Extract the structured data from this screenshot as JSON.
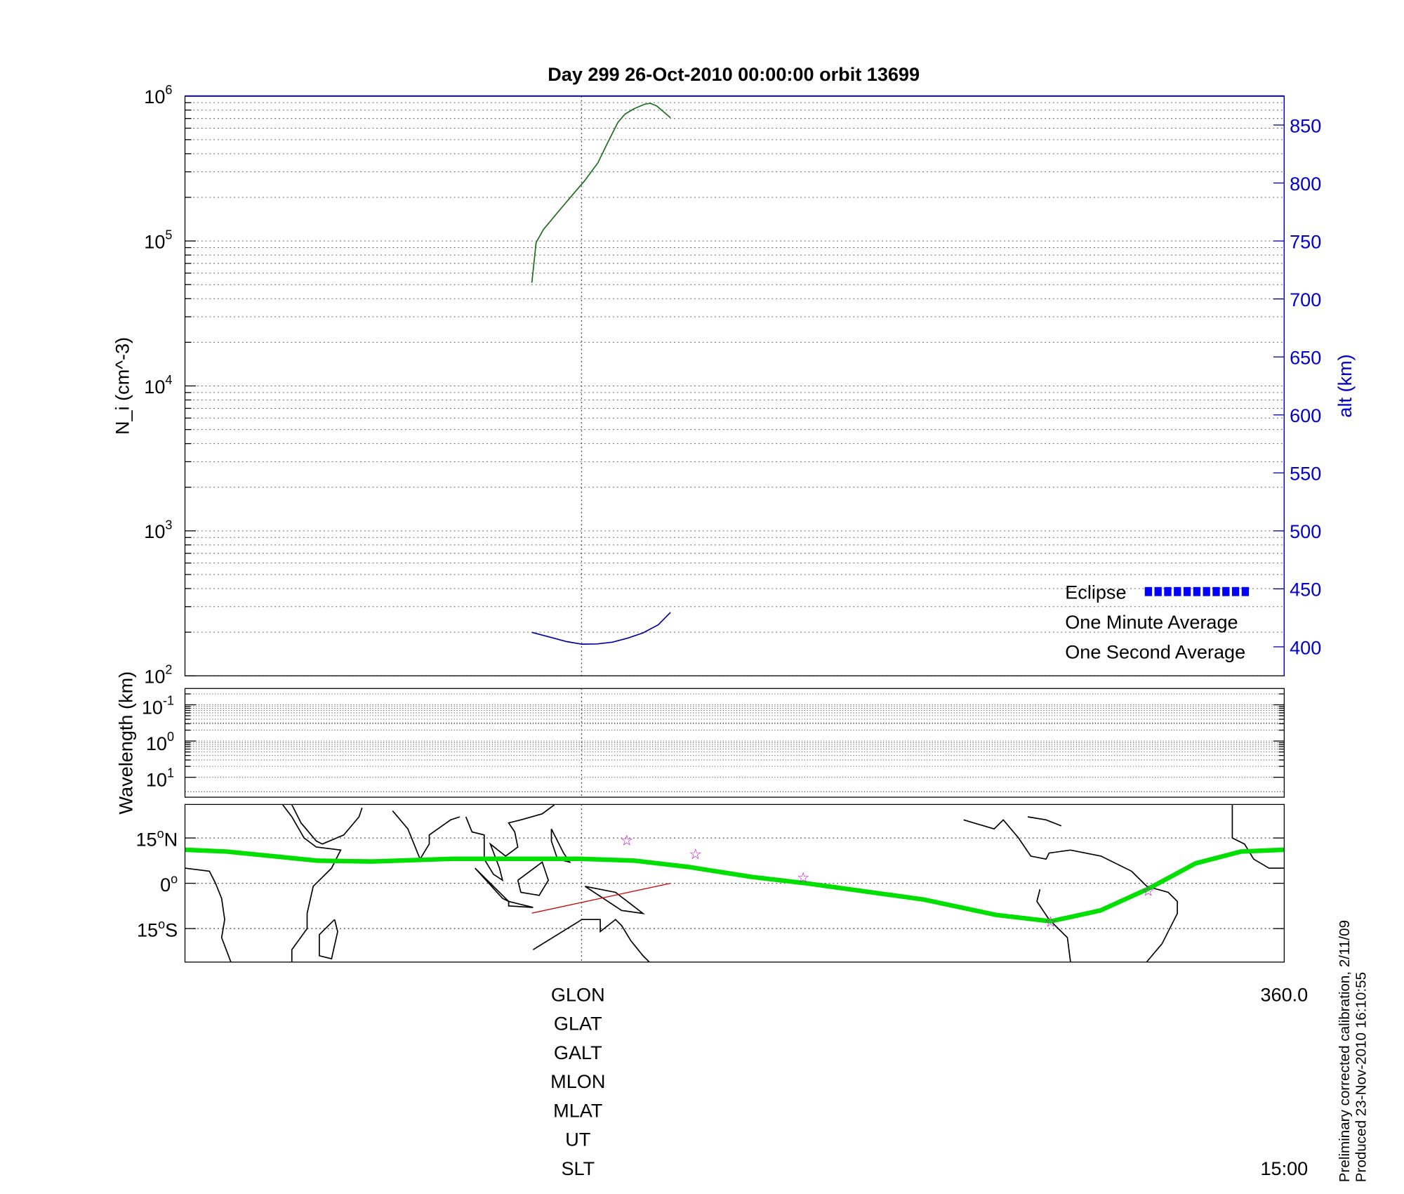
{
  "chart_data": [
    {
      "panel": "density",
      "type": "line",
      "title": "Day 299  26-Oct-2010 00:00:00   orbit 13699",
      "ylabel": "N_i (cm^-3)",
      "y2label": "alt (km)",
      "yscale": "log",
      "ylim": [
        100,
        1000000
      ],
      "y2lim": [
        375,
        875
      ],
      "xlim": [
        0,
        360
      ],
      "yticks": [
        {
          "base": "10",
          "exp": "6",
          "v": 1000000
        },
        {
          "base": "10",
          "exp": "5",
          "v": 100000
        },
        {
          "base": "10",
          "exp": "4",
          "v": 10000
        },
        {
          "base": "10",
          "exp": "3",
          "v": 1000
        },
        {
          "base": "10",
          "exp": "2",
          "v": 100
        }
      ],
      "y2ticks": [
        "850",
        "800",
        "750",
        "700",
        "650",
        "600",
        "550",
        "500",
        "450",
        "400"
      ],
      "grid": true,
      "series": [
        {
          "name": "One Minute Average",
          "axis": "left",
          "color": "#1a6e1a",
          "x": [
            113.6,
            115.0,
            117.4,
            121.9,
            125.7,
            128.7,
            130.8,
            135.2,
            138.8,
            141.8,
            144.1,
            147.1,
            150.6,
            152.4,
            154.5,
            159.0
          ],
          "y": [
            51500,
            97500,
            120000,
            156000,
            194000,
            230000,
            259000,
            345000,
            494000,
            659000,
            750000,
            818000,
            879000,
            891000,
            854000,
            708000
          ]
        },
        {
          "name": "altitude",
          "axis": "right",
          "color": "#0000aa",
          "x": [
            113.6,
            120,
            125,
            130,
            135,
            140,
            145,
            150,
            155,
            159
          ],
          "y": [
            412.5,
            408,
            404.5,
            402.3,
            402.5,
            404,
            407.5,
            412,
            419,
            429.7
          ]
        }
      ],
      "legend": {
        "placement": "bottom-right",
        "entries": [
          {
            "label": "Eclipse",
            "color": "#0000ff"
          },
          {
            "label": "One Minute Average",
            "color": "#000000"
          },
          {
            "label": "One Second Average",
            "color": "#00e000"
          }
        ]
      }
    },
    {
      "panel": "wavelength",
      "type": "heatmap",
      "ylabel": "Wavelength (km)",
      "yscale": "log",
      "yticks": [
        {
          "base": "10",
          "exp": "-1"
        },
        {
          "base": "10",
          "exp": "0"
        },
        {
          "base": "10",
          "exp": "1"
        }
      ],
      "grid": true
    },
    {
      "panel": "map",
      "type": "line",
      "xlim": [
        0,
        360
      ],
      "ylim": [
        -26,
        26
      ],
      "yticks": [
        {
          "label": "15",
          "suffix": "N",
          "v": 15
        },
        {
          "label": "0",
          "suffix": "",
          "v": 0
        },
        {
          "label": "15",
          "suffix": "S",
          "v": -15
        }
      ],
      "track": {
        "color": "#00e000",
        "lon": [
          0,
          13.6,
          43.3,
          61.1,
          87.8,
          129.3,
          147.1,
          164.9,
          185.6,
          203.4,
          242,
          265.7,
          283.5,
          299.8,
          315.5,
          331,
          345.8,
          360
        ],
        "lat": [
          11.1,
          10.5,
          7.5,
          7.2,
          8.1,
          8.1,
          7.5,
          5.4,
          2.1,
          0,
          -5.4,
          -10.5,
          -12.6,
          -9,
          -1.8,
          6.6,
          10.5,
          11.1
        ]
      },
      "stars": {
        "color": "#cc00cc",
        "lon": [
          144.7,
          167.2,
          202.5,
          283.5,
          315.5
        ],
        "lat": [
          14.4,
          9.9,
          2.1,
          -12.6,
          -2.4
        ]
      },
      "segment": {
        "color": "#cc0000",
        "lon": [
          113.6,
          159.0
        ],
        "lat": [
          -9.9,
          0
        ]
      }
    }
  ],
  "footer": {
    "row_labels": [
      "GLON",
      "GLAT",
      "GALT",
      "MLON",
      "MLAT",
      "UT",
      "SLT"
    ],
    "glon_end": "360.0",
    "slt_end": "15:00",
    "note1": "Preliminary corrected calibration, 2/11/09",
    "note2": "Produced 23-Nov-2010 16:10:55"
  }
}
